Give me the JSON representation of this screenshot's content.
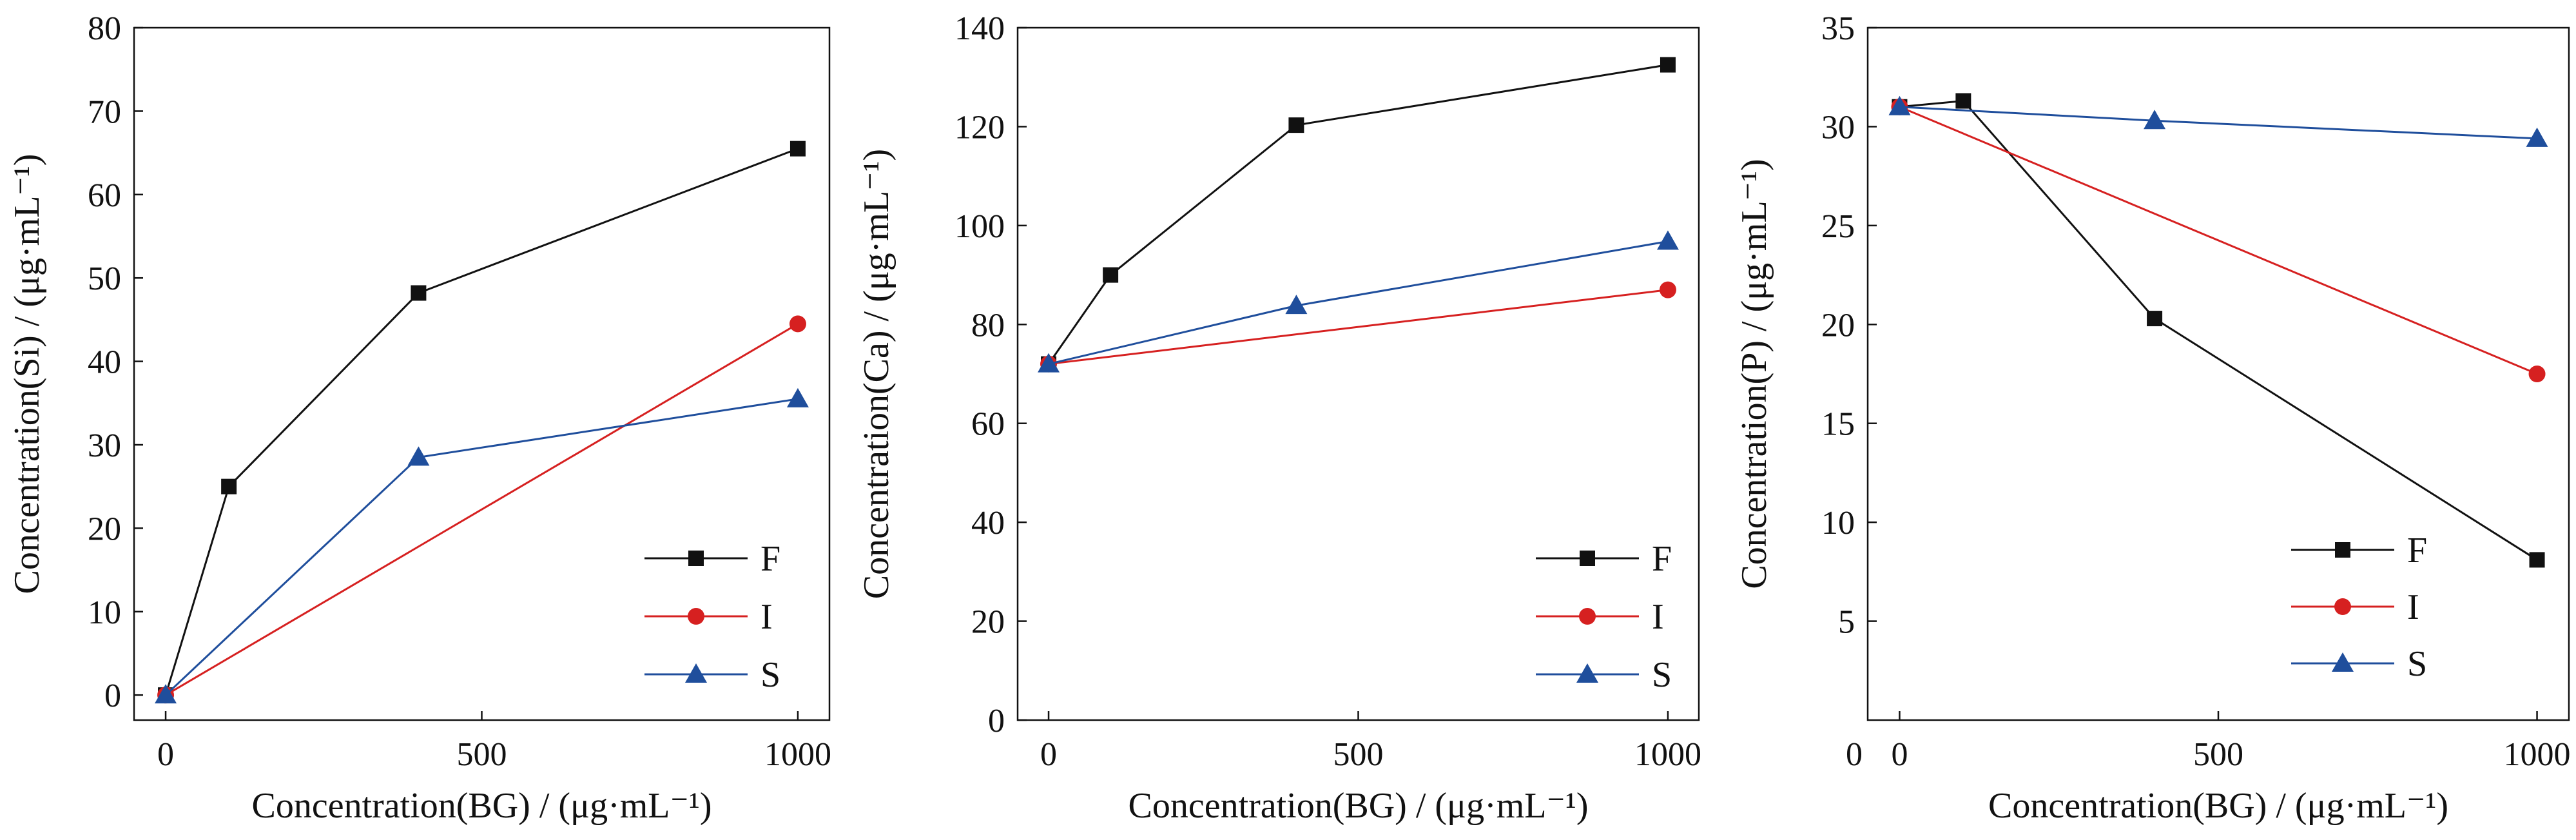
{
  "colors": {
    "F": "#111111",
    "I": "#d62020",
    "S": "#1f4e9c"
  },
  "chart_data": [
    {
      "type": "line",
      "xlabel": "Concentration(BG) / (μg·mL⁻¹)",
      "ylabel": "Concentration(Si) / (μg·mL⁻¹)",
      "xlim": [
        -50,
        1050
      ],
      "ylim": [
        -3,
        80
      ],
      "xticks": [
        0,
        500,
        1000
      ],
      "yticks": [
        0,
        10,
        20,
        30,
        40,
        50,
        60,
        70,
        80
      ],
      "legend_position": "bottom-right",
      "series": [
        {
          "name": "F",
          "marker": "square",
          "x": [
            0,
            100,
            400,
            1000
          ],
          "y": [
            0,
            25,
            48.2,
            65.5
          ]
        },
        {
          "name": "I",
          "marker": "circle",
          "x": [
            0,
            1000
          ],
          "y": [
            0,
            44.5
          ]
        },
        {
          "name": "S",
          "marker": "triangle",
          "x": [
            0,
            400,
            1000
          ],
          "y": [
            0,
            28.5,
            35.5
          ]
        }
      ]
    },
    {
      "type": "line",
      "xlabel": "Concentration(BG) / (μg·mL⁻¹)",
      "ylabel": "Concentration(Ca) / (μg·mL⁻¹)",
      "xlim": [
        -50,
        1050
      ],
      "ylim": [
        0,
        140
      ],
      "xticks": [
        0,
        500,
        1000
      ],
      "yticks": [
        0,
        20,
        40,
        60,
        80,
        100,
        120,
        140
      ],
      "legend_position": "bottom-right",
      "series": [
        {
          "name": "F",
          "marker": "square",
          "x": [
            0,
            100,
            400,
            1000
          ],
          "y": [
            72,
            90,
            120.3,
            132.5
          ]
        },
        {
          "name": "I",
          "marker": "circle",
          "x": [
            0,
            1000
          ],
          "y": [
            72,
            87
          ]
        },
        {
          "name": "S",
          "marker": "triangle",
          "x": [
            0,
            400,
            1000
          ],
          "y": [
            72,
            83.8,
            96.8
          ]
        }
      ]
    },
    {
      "type": "line",
      "xlabel": "Concentration(BG) / (μg·mL⁻¹)",
      "ylabel": "Concentration(P) / (μg·mL⁻¹)",
      "xlim": [
        -50,
        1050
      ],
      "ylim": [
        0,
        35
      ],
      "xticks": [
        0,
        500,
        1000
      ],
      "yticks": [
        5,
        10,
        15,
        20,
        25,
        30,
        35
      ],
      "extra_label": "0",
      "legend_position": "bottom-right",
      "series": [
        {
          "name": "F",
          "marker": "square",
          "x": [
            0,
            100,
            400,
            1000
          ],
          "y": [
            31,
            31.3,
            20.3,
            8.1
          ]
        },
        {
          "name": "I",
          "marker": "circle",
          "x": [
            0,
            1000
          ],
          "y": [
            31,
            17.5
          ]
        },
        {
          "name": "S",
          "marker": "triangle",
          "x": [
            0,
            400,
            1000
          ],
          "y": [
            31,
            30.3,
            29.4
          ]
        }
      ]
    }
  ]
}
